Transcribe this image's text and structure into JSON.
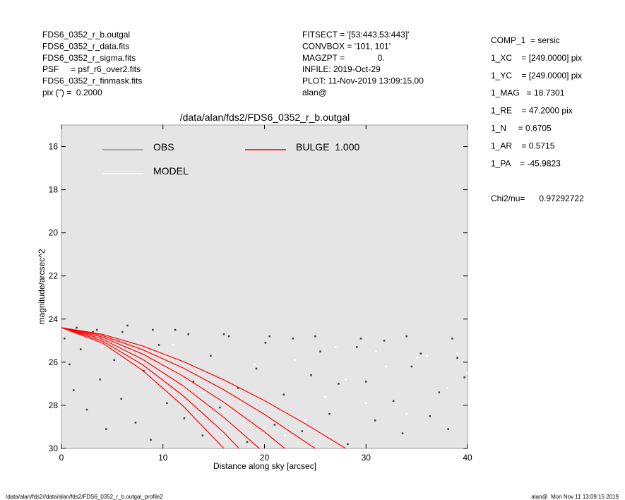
{
  "header_left": [
    "FDS6_0352_r_b.outgal",
    "FDS6_0352_r_data.fits",
    "FDS6_0352_r_sigma.fits",
    "PSF     = psf_r6_over2.fits",
    "FDS6_0352_r_finmask.fits",
    "pix (\") =  0.2000"
  ],
  "header_middle": [
    "FITSECT = '[53:443,53:443]'",
    "CONVBOX = '101, 101'",
    "MAGZPT =              0.",
    "INFILE: 2019-Oct-29",
    "PLOT: 11-Nov-2019 13:09:15.00",
    "alan@"
  ],
  "parameters": [
    "COMP_1  = sersic",
    "1_XC    = [249.0000] pix",
    "1_YC    = [249.0000] pix",
    "1_MAG   = 18.7301",
    "1_RE    = 47.2000 pix",
    "1_N     = 0.6705",
    "1_AR    = 0.5715",
    "1_PA    = -45.9823"
  ],
  "chi2": "Chi2/nu=      0.97292722",
  "footer_left": "/data/alan/fds2//data/alan/fds2/FDS6_0352_r_b.outgal_profile2",
  "footer_right": "alan@  Mon Nov 11 13:09:15 2019",
  "chart_data": {
    "type": "scatter",
    "title": "/data/alan/fds2/FDS6_0352_r_b.outgal",
    "xlabel": "Distance along sky [arcsec]",
    "ylabel": "magnitude/arcsec^2",
    "xlim": [
      0,
      40
    ],
    "xticks": [
      0,
      10,
      20,
      30,
      40
    ],
    "ylim": [
      15,
      30
    ],
    "y_inverted": true,
    "yticks": [
      16,
      18,
      20,
      22,
      24,
      26,
      28,
      30
    ],
    "background": "#e5e5e5",
    "series": [
      {
        "name": "OBS",
        "color": "#444444",
        "legend_color": "#8c8c8c",
        "x": [
          0.3,
          0.8,
          1.2,
          1.9,
          2.5,
          3.1,
          3.8,
          4.4,
          5.2,
          5.9,
          6.5,
          7.3,
          8.1,
          8.8,
          9.6,
          10.4,
          11.2,
          12.1,
          13.0,
          13.9,
          14.7,
          15.6,
          16.5,
          17.4,
          18.3,
          19.2,
          20.1,
          21.0,
          21.9,
          22.8,
          23.7,
          24.6,
          25.5,
          26.4,
          27.3,
          28.2,
          29.1,
          30.0,
          30.9,
          31.8,
          32.7,
          33.6,
          34.5,
          35.4,
          36.3,
          37.2,
          38.1,
          39.0,
          39.7,
          1.5,
          3.5,
          6.0,
          9.0,
          12.5,
          16.0,
          20.5,
          25.0,
          29.5,
          34.0,
          38.5
        ],
        "values": [
          24.9,
          26.1,
          27.3,
          25.4,
          28.2,
          24.6,
          26.8,
          29.1,
          25.9,
          27.7,
          24.3,
          28.8,
          26.4,
          29.6,
          25.2,
          27.9,
          24.5,
          28.6,
          26.9,
          29.4,
          25.7,
          28.1,
          24.8,
          27.2,
          29.7,
          26.3,
          25.1,
          28.9,
          27.5,
          24.9,
          29.2,
          26.6,
          25.5,
          28.4,
          27.0,
          29.8,
          25.3,
          26.9,
          28.7,
          25.0,
          27.8,
          29.3,
          26.2,
          25.6,
          28.5,
          27.4,
          29.1,
          25.8,
          26.7,
          24.4,
          24.5,
          24.6,
          24.5,
          24.7,
          24.7,
          24.8,
          24.8,
          24.9,
          24.8,
          24.9
        ]
      },
      {
        "name": "MODEL",
        "color": "#ffffff",
        "legend_color": "#ffffff",
        "x": [
          2,
          4,
          6,
          8,
          10,
          12,
          14,
          16,
          18,
          20,
          22,
          24,
          26,
          28,
          30,
          32,
          34,
          36,
          38,
          40,
          3,
          7,
          11,
          15,
          19,
          23,
          27,
          31,
          35,
          39
        ],
        "values": [
          24.6,
          25.3,
          25.9,
          26.0,
          26.6,
          27.1,
          27.4,
          28.3,
          28.8,
          29.0,
          29.4,
          28.7,
          27.6,
          26.8,
          27.9,
          26.2,
          28.4,
          25.7,
          27.2,
          26.5,
          24.8,
          25.4,
          25.2,
          25.6,
          26.1,
          25.9,
          25.3,
          25.5,
          25.8,
          25.6
        ]
      },
      {
        "name": "BULGE  1.000",
        "color": "#ff0000",
        "legend_color": "#ff0000",
        "lines": [
          {
            "x": [
              0,
              4,
              8,
              12,
              16,
              20,
              24,
              28
            ],
            "values": [
              24.4,
              24.7,
              25.25,
              25.97,
              26.82,
              27.78,
              28.85,
              30.0
            ]
          },
          {
            "x": [
              0,
              4,
              8,
              12,
              16,
              20,
              24,
              25
            ],
            "values": [
              24.4,
              24.76,
              25.42,
              26.27,
              27.28,
              28.42,
              29.69,
              30.0
            ]
          },
          {
            "x": [
              0,
              4,
              8,
              12,
              16,
              20,
              22
            ],
            "values": [
              24.4,
              24.83,
              25.62,
              26.65,
              27.86,
              29.23,
              30.0
            ]
          },
          {
            "x": [
              0,
              4,
              8,
              12,
              16,
              19.5
            ],
            "values": [
              24.4,
              24.92,
              25.87,
              27.1,
              28.56,
              30.0
            ]
          },
          {
            "x": [
              0,
              4,
              8,
              12,
              16,
              17.5
            ],
            "values": [
              24.4,
              25.01,
              26.12,
              27.56,
              29.26,
              30.0
            ]
          },
          {
            "x": [
              0,
              4,
              8,
              12,
              16
            ],
            "values": [
              24.4,
              25.1,
              26.38,
              28.04,
              30.0
            ]
          }
        ]
      }
    ]
  }
}
